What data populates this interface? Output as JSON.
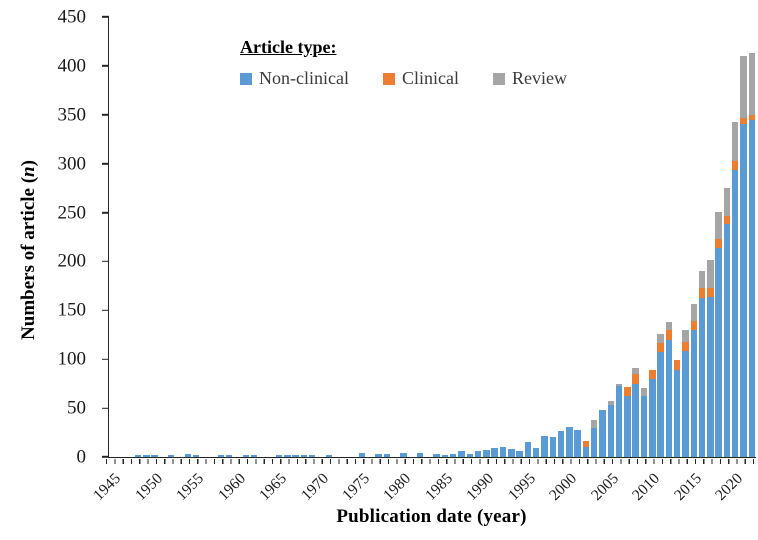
{
  "chart_data": {
    "type": "bar",
    "stacked": true,
    "grid": false,
    "legend_position": "top-left-inside",
    "legend_title": "Article type:",
    "xlabel": "Publication date (year)",
    "ylabel_prefix": "Numbers of article (",
    "ylabel_italic": "n",
    "ylabel_suffix": ")",
    "ylim": [
      0,
      450
    ],
    "y_ticks": [
      0,
      50,
      100,
      150,
      200,
      250,
      300,
      350,
      400,
      450
    ],
    "x_tick_labels": [
      "1945",
      "1950",
      "1955",
      "1960",
      "1965",
      "1970",
      "1975",
      "1980",
      "1985",
      "1990",
      "1995",
      "2000",
      "2005",
      "2010",
      "2015",
      "2020"
    ],
    "axis_color": "#262626",
    "categories": [
      1945,
      1946,
      1947,
      1948,
      1949,
      1950,
      1951,
      1952,
      1953,
      1954,
      1955,
      1956,
      1957,
      1958,
      1959,
      1960,
      1961,
      1962,
      1963,
      1964,
      1965,
      1966,
      1967,
      1968,
      1969,
      1970,
      1971,
      1972,
      1973,
      1974,
      1975,
      1976,
      1977,
      1978,
      1979,
      1980,
      1981,
      1982,
      1983,
      1984,
      1985,
      1986,
      1987,
      1988,
      1989,
      1990,
      1991,
      1992,
      1993,
      1994,
      1995,
      1996,
      1997,
      1998,
      1999,
      2000,
      2001,
      2002,
      2003,
      2004,
      2005,
      2006,
      2007,
      2008,
      2009,
      2010,
      2011,
      2012,
      2013,
      2014,
      2015,
      2016,
      2017,
      2018,
      2019,
      2020,
      2021,
      2022
    ],
    "series": [
      {
        "name": "Non-clinical",
        "color": "#5B9BD5",
        "values": [
          0,
          0,
          0,
          2,
          2,
          2,
          0,
          2,
          0,
          3,
          2,
          0,
          0,
          2,
          2,
          0,
          2,
          2,
          0,
          0,
          2,
          2,
          2,
          2,
          2,
          0,
          2,
          0,
          0,
          0,
          4,
          0,
          3,
          3,
          0,
          4,
          0,
          4,
          0,
          3,
          2,
          3,
          6,
          3,
          6,
          7,
          9,
          10,
          8,
          6,
          15,
          9,
          22,
          20,
          27,
          31,
          28,
          10,
          30,
          48,
          53,
          73,
          62,
          75,
          62,
          80,
          107,
          120,
          89,
          108,
          130,
          163,
          164,
          214,
          238,
          294,
          341,
          345
        ]
      },
      {
        "name": "Clinical",
        "color": "#ED7D31",
        "values": [
          0,
          0,
          0,
          0,
          0,
          0,
          0,
          0,
          0,
          0,
          0,
          0,
          0,
          0,
          0,
          0,
          0,
          0,
          0,
          0,
          0,
          0,
          0,
          0,
          0,
          0,
          0,
          0,
          0,
          0,
          0,
          0,
          0,
          0,
          0,
          0,
          0,
          0,
          0,
          0,
          0,
          0,
          0,
          0,
          0,
          0,
          0,
          0,
          0,
          0,
          0,
          0,
          0,
          0,
          0,
          0,
          0,
          6,
          0,
          0,
          0,
          0,
          10,
          10,
          0,
          9,
          10,
          10,
          10,
          10,
          9,
          10,
          9,
          9,
          9,
          9,
          6,
          5
        ]
      },
      {
        "name": "Review",
        "color": "#A5A5A5",
        "values": [
          0,
          0,
          0,
          0,
          0,
          0,
          0,
          0,
          0,
          0,
          0,
          0,
          0,
          0,
          0,
          0,
          0,
          0,
          0,
          0,
          0,
          0,
          0,
          0,
          0,
          0,
          0,
          0,
          0,
          0,
          0,
          0,
          0,
          0,
          0,
          0,
          0,
          0,
          0,
          0,
          0,
          0,
          0,
          0,
          0,
          0,
          0,
          0,
          0,
          0,
          0,
          0,
          0,
          0,
          0,
          0,
          0,
          0,
          8,
          0,
          4,
          2,
          0,
          6,
          9,
          0,
          9,
          8,
          0,
          12,
          17,
          17,
          29,
          28,
          28,
          40,
          63,
          63
        ]
      }
    ]
  }
}
